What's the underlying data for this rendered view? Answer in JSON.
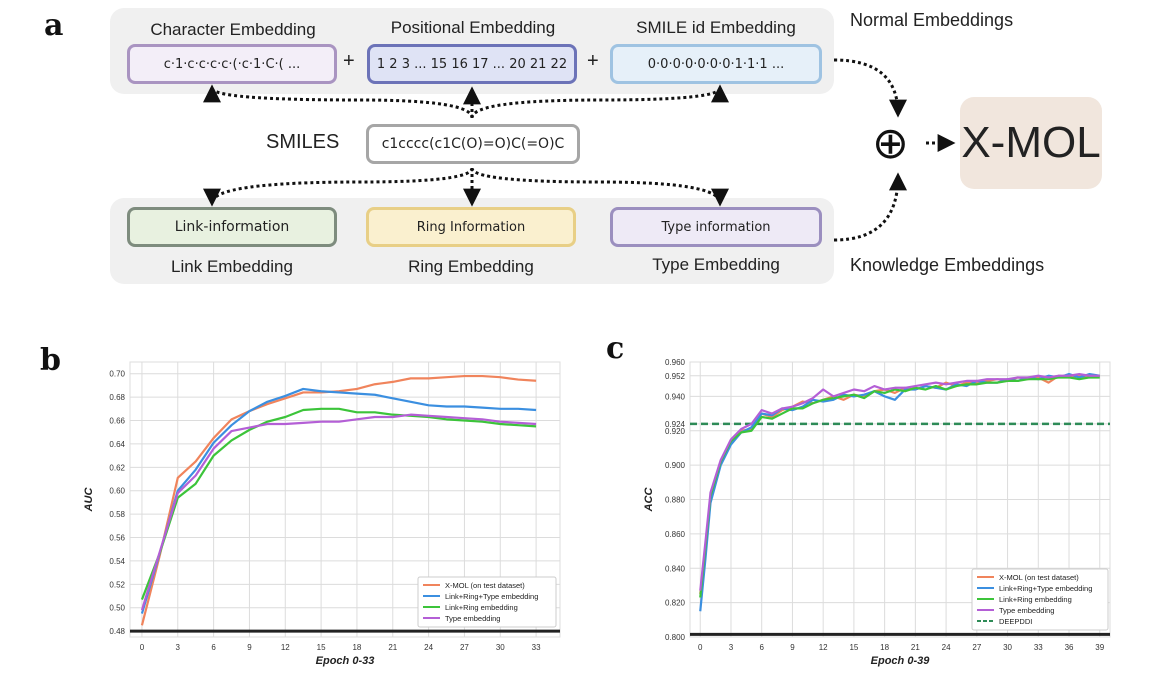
{
  "panel_a": {
    "letter": "a",
    "character_embedding": {
      "title": "Character Embedding",
      "value": "c·1·c·c·c·c·(·c·1·C·( ..."
    },
    "positional_embedding": {
      "title": "Positional Embedding",
      "value": "1 2 3 ... 15 16 17 ... 20 21 22"
    },
    "smile_id_embedding": {
      "title": "SMILE id Embedding",
      "value": "0·0·0·0·0·0·0·1·1·1 ..."
    },
    "plus_1": "+",
    "plus_2": "+",
    "normal_embeddings": "Normal Embeddings",
    "smiles_label": "SMILES",
    "smiles_value": "c1cccc(c1C(O)=O)C(=O)C",
    "link_information": "Link-information",
    "ring_information": "Ring Information",
    "type_information": "Type information",
    "link_embedding": "Link Embedding",
    "ring_embedding": "Ring Embedding",
    "type_embedding": "Type Embedding",
    "knowledge_embeddings": "Knowledge Embeddings",
    "oplus_symbol": "⊕",
    "output_label": "X-MOL",
    "colors": {
      "char_border": "#a994c1",
      "char_fill": "#f3eef8",
      "pos_border": "#6c73b8",
      "pos_fill": "#dfe3f5",
      "smile_border": "#9fc3e2",
      "smile_fill": "#e6f0f9",
      "link_border": "#7e8c7e",
      "link_fill": "#e8f1e0",
      "ring_border": "#e8cf86",
      "ring_fill": "#faf0cf",
      "type_border": "#9b8fbf",
      "type_fill": "#eeeaf6",
      "smiles_border": "#a6a6a6"
    }
  },
  "chart_data": [
    {
      "letter": "b",
      "type": "line",
      "xlabel": "Epoch 0-33",
      "ylabel": "AUC",
      "xticks": [
        0,
        3,
        6,
        9,
        12,
        15,
        18,
        21,
        24,
        27,
        30,
        33
      ],
      "yticks": [
        0.48,
        0.5,
        0.52,
        0.54,
        0.56,
        0.58,
        0.6,
        0.62,
        0.64,
        0.66,
        0.68,
        0.7
      ],
      "xlim": [
        -1,
        35
      ],
      "ylim": [
        0.475,
        0.71
      ],
      "grid": true,
      "legend_position": "bottom-right",
      "baseline": {
        "y": 0.48,
        "color": "#222222"
      },
      "series": [
        {
          "name": "X-MOL (on test dataset)",
          "color": "#f0845c",
          "x": [
            0,
            1.5,
            3,
            4.5,
            6,
            7.5,
            9,
            10.5,
            12,
            13.5,
            15,
            16.5,
            18,
            19.5,
            21,
            22.5,
            24,
            25.5,
            27,
            28.5,
            30,
            31.5,
            33
          ],
          "y": [
            0.485,
            0.545,
            0.611,
            0.625,
            0.645,
            0.661,
            0.668,
            0.674,
            0.679,
            0.684,
            0.684,
            0.685,
            0.687,
            0.691,
            0.693,
            0.696,
            0.696,
            0.697,
            0.698,
            0.698,
            0.697,
            0.695,
            0.694
          ]
        },
        {
          "name": "Link+Ring+Type embedding",
          "color": "#3b8fe0",
          "x": [
            0,
            1.5,
            3,
            4.5,
            6,
            7.5,
            9,
            10.5,
            12,
            13.5,
            15,
            16.5,
            18,
            19.5,
            21,
            22.5,
            24,
            25.5,
            27,
            28.5,
            30,
            31.5,
            33
          ],
          "y": [
            0.495,
            0.547,
            0.6,
            0.618,
            0.641,
            0.656,
            0.668,
            0.676,
            0.681,
            0.687,
            0.685,
            0.684,
            0.683,
            0.682,
            0.679,
            0.676,
            0.673,
            0.672,
            0.672,
            0.671,
            0.67,
            0.67,
            0.669
          ]
        },
        {
          "name": "Link+Ring embedding",
          "color": "#3cc43a",
          "x": [
            0,
            1.5,
            3,
            4.5,
            6,
            7.5,
            9,
            10.5,
            12,
            13.5,
            15,
            16.5,
            18,
            19.5,
            21,
            22.5,
            24,
            25.5,
            27,
            28.5,
            30,
            31.5,
            33
          ],
          "y": [
            0.507,
            0.547,
            0.594,
            0.606,
            0.63,
            0.643,
            0.652,
            0.659,
            0.663,
            0.669,
            0.67,
            0.67,
            0.667,
            0.667,
            0.665,
            0.664,
            0.663,
            0.661,
            0.66,
            0.659,
            0.657,
            0.656,
            0.655
          ]
        },
        {
          "name": "Type embedding",
          "color": "#b45fd6",
          "x": [
            0,
            1.5,
            3,
            4.5,
            6,
            7.5,
            9,
            10.5,
            12,
            13.5,
            15,
            16.5,
            18,
            19.5,
            21,
            22.5,
            24,
            25.5,
            27,
            28.5,
            30,
            31.5,
            33
          ],
          "y": [
            0.498,
            0.548,
            0.598,
            0.613,
            0.636,
            0.651,
            0.654,
            0.657,
            0.657,
            0.658,
            0.659,
            0.659,
            0.661,
            0.663,
            0.663,
            0.665,
            0.664,
            0.663,
            0.662,
            0.661,
            0.659,
            0.658,
            0.657
          ]
        }
      ]
    },
    {
      "letter": "c",
      "type": "line",
      "xlabel": "Epoch 0-39",
      "ylabel": "ACC",
      "xticks": [
        0,
        3,
        6,
        9,
        12,
        15,
        18,
        21,
        24,
        27,
        30,
        33,
        36,
        39
      ],
      "yticks": [
        0.8,
        0.82,
        0.84,
        0.86,
        0.88,
        0.9,
        0.92,
        0.924,
        0.94,
        0.952,
        0.96
      ],
      "xlim": [
        -1,
        40
      ],
      "ylim": [
        0.8,
        0.96
      ],
      "grid": true,
      "legend_position": "bottom-right",
      "baseline": {
        "y": 0.8015,
        "color": "#222222"
      },
      "series": [
        {
          "name": "X-MOL (on test dataset)",
          "color": "#f0845c",
          "x": [
            0,
            0.5,
            1,
            2,
            3,
            4,
            5,
            6,
            7,
            8,
            9,
            10,
            11,
            12,
            13,
            14,
            15,
            16,
            17,
            18,
            19,
            20,
            21,
            22,
            23,
            24,
            25,
            26,
            27,
            28,
            29,
            30,
            31,
            32,
            33,
            34,
            35,
            36,
            37,
            38,
            39
          ],
          "y": [
            0.825,
            0.85,
            0.88,
            0.901,
            0.913,
            0.92,
            0.921,
            0.93,
            0.928,
            0.932,
            0.934,
            0.937,
            0.936,
            0.938,
            0.94,
            0.938,
            0.941,
            0.94,
            0.943,
            0.944,
            0.942,
            0.945,
            0.944,
            0.946,
            0.945,
            0.948,
            0.946,
            0.948,
            0.948,
            0.949,
            0.95,
            0.949,
            0.951,
            0.95,
            0.951,
            0.948,
            0.952,
            0.951,
            0.952,
            0.951,
            0.952
          ]
        },
        {
          "name": "Link+Ring+Type embedding",
          "color": "#3b8fe0",
          "x": [
            0,
            0.5,
            1,
            2,
            3,
            4,
            5,
            6,
            7,
            8,
            9,
            10,
            11,
            12,
            13,
            14,
            15,
            16,
            17,
            18,
            19,
            20,
            21,
            22,
            23,
            24,
            25,
            26,
            27,
            28,
            29,
            30,
            31,
            32,
            33,
            34,
            35,
            36,
            37,
            38,
            39
          ],
          "y": [
            0.815,
            0.845,
            0.878,
            0.9,
            0.912,
            0.919,
            0.922,
            0.93,
            0.929,
            0.933,
            0.932,
            0.934,
            0.938,
            0.937,
            0.938,
            0.941,
            0.94,
            0.941,
            0.943,
            0.94,
            0.938,
            0.944,
            0.944,
            0.946,
            0.945,
            0.944,
            0.947,
            0.946,
            0.949,
            0.948,
            0.948,
            0.95,
            0.949,
            0.951,
            0.95,
            0.952,
            0.951,
            0.953,
            0.951,
            0.953,
            0.952
          ]
        },
        {
          "name": "Link+Ring embedding",
          "color": "#3cc43a",
          "x": [
            0,
            0.5,
            1,
            2,
            3,
            4,
            5,
            6,
            7,
            8,
            9,
            10,
            11,
            12,
            13,
            14,
            15,
            16,
            17,
            18,
            19,
            20,
            21,
            22,
            23,
            24,
            25,
            26,
            27,
            28,
            29,
            30,
            31,
            32,
            33,
            34,
            35,
            36,
            37,
            38,
            39
          ],
          "y": [
            0.823,
            0.852,
            0.882,
            0.902,
            0.914,
            0.919,
            0.92,
            0.928,
            0.927,
            0.93,
            0.933,
            0.933,
            0.936,
            0.938,
            0.939,
            0.94,
            0.941,
            0.939,
            0.943,
            0.942,
            0.944,
            0.943,
            0.945,
            0.944,
            0.946,
            0.944,
            0.946,
            0.947,
            0.947,
            0.948,
            0.948,
            0.949,
            0.949,
            0.95,
            0.95,
            0.95,
            0.951,
            0.951,
            0.95,
            0.951,
            0.951
          ]
        },
        {
          "name": "Type embedding",
          "color": "#b45fd6",
          "x": [
            0,
            0.5,
            1,
            2,
            3,
            4,
            5,
            6,
            7,
            8,
            9,
            10,
            11,
            12,
            13,
            14,
            15,
            16,
            17,
            18,
            19,
            20,
            21,
            22,
            23,
            24,
            25,
            26,
            27,
            28,
            29,
            30,
            31,
            32,
            33,
            34,
            35,
            36,
            37,
            38,
            39
          ],
          "y": [
            0.827,
            0.855,
            0.884,
            0.903,
            0.915,
            0.921,
            0.924,
            0.932,
            0.93,
            0.933,
            0.934,
            0.936,
            0.939,
            0.944,
            0.94,
            0.942,
            0.944,
            0.943,
            0.946,
            0.944,
            0.945,
            0.945,
            0.946,
            0.947,
            0.948,
            0.947,
            0.948,
            0.949,
            0.949,
            0.95,
            0.95,
            0.95,
            0.951,
            0.951,
            0.952,
            0.951,
            0.952,
            0.952,
            0.953,
            0.952,
            0.952
          ]
        }
      ],
      "reference": {
        "name": "DEEPDDI",
        "y": 0.924,
        "color": "#2e8b57",
        "dashed": true
      }
    }
  ]
}
